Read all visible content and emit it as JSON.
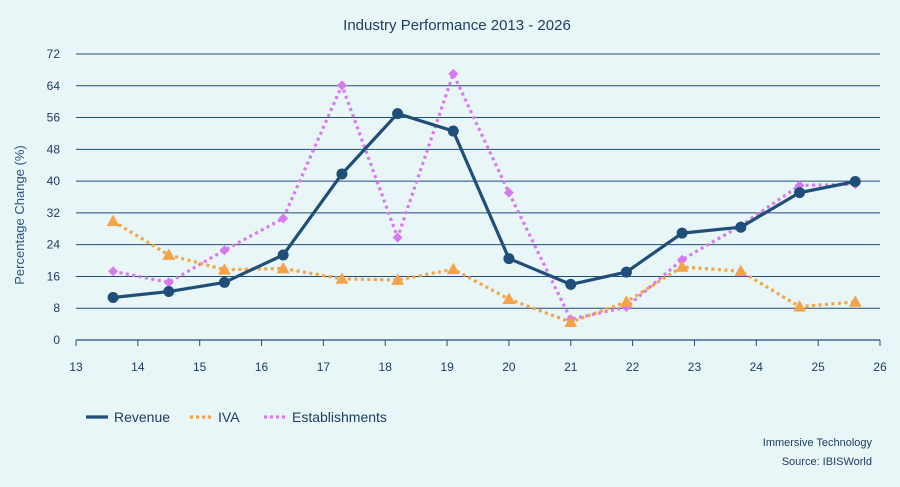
{
  "chart_data": {
    "type": "line",
    "title": "Industry Performance 2013 - 2026",
    "ylabel": "Percentage Change (%)",
    "xlabel": "",
    "ylim": [
      0,
      72
    ],
    "yticks": [
      "0",
      "8",
      "16",
      "24",
      "32",
      "40",
      "48",
      "56",
      "64",
      "72"
    ],
    "xticks": [
      "13",
      "14",
      "15",
      "16",
      "17",
      "18",
      "19",
      "20",
      "21",
      "22",
      "23",
      "24",
      "25",
      "26"
    ],
    "x": [
      13.6,
      14.5,
      15.4,
      16.35,
      17.3,
      18.2,
      19.1,
      20.0,
      21.0,
      21.9,
      22.8,
      23.75,
      24.7,
      25.6
    ],
    "series": [
      {
        "name": "Revenue",
        "color": "#1f4e79",
        "style": "solid",
        "marker": "circle",
        "values": [
          10.7,
          12.2,
          14.5,
          21.4,
          41.8,
          57.0,
          52.6,
          20.5,
          14.0,
          17.1,
          26.9,
          28.4,
          37.1,
          39.9
        ]
      },
      {
        "name": "IVA",
        "color": "#f6a347",
        "style": "dotted",
        "marker": "triangle",
        "values": [
          29.9,
          21.4,
          17.7,
          18.0,
          15.4,
          15.1,
          17.8,
          10.3,
          4.5,
          9.6,
          18.4,
          17.3,
          8.4,
          9.6
        ]
      },
      {
        "name": "Establishments",
        "color": "#d77af0",
        "style": "dotted",
        "marker": "diamond",
        "values": [
          17.3,
          14.5,
          22.6,
          30.6,
          64.1,
          25.8,
          67.0,
          37.1,
          5.2,
          8.3,
          20.2,
          28.8,
          38.9,
          39.2
        ]
      }
    ],
    "grid": "horizontal",
    "legend_position": "bottom-left"
  },
  "footer": {
    "line1": "Immersive Technology",
    "line2": "Source: IBISWorld"
  }
}
